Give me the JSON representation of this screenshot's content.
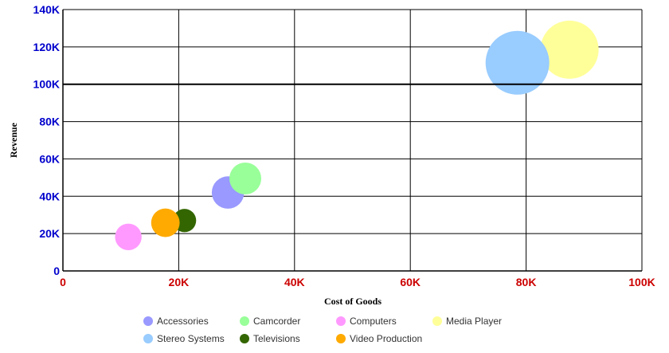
{
  "chart_data": {
    "type": "scatter",
    "subtype": "bubble",
    "title": "",
    "xlabel": "Cost of Goods",
    "ylabel": "Revenue",
    "xlim": [
      0,
      100000
    ],
    "ylim": [
      0,
      140000
    ],
    "x_ticks": [
      {
        "value": 0,
        "label": "0"
      },
      {
        "value": 20000,
        "label": "20K"
      },
      {
        "value": 40000,
        "label": "40K"
      },
      {
        "value": 60000,
        "label": "60K"
      },
      {
        "value": 80000,
        "label": "80K"
      },
      {
        "value": 100000,
        "label": "100K"
      }
    ],
    "y_ticks": [
      {
        "value": 0,
        "label": "0"
      },
      {
        "value": 20000,
        "label": "20K"
      },
      {
        "value": 40000,
        "label": "40K"
      },
      {
        "value": 60000,
        "label": "60K"
      },
      {
        "value": 80000,
        "label": "80K"
      },
      {
        "value": 100000,
        "label": "100K"
      },
      {
        "value": 120000,
        "label": "120K"
      },
      {
        "value": 140000,
        "label": "140K"
      }
    ],
    "grid": true,
    "legend_position": "bottom",
    "series": [
      {
        "name": "Accessories",
        "color": "#9999ff",
        "x": 28500,
        "y": 42000,
        "size": 3.1
      },
      {
        "name": "Camcorder",
        "color": "#99ff99",
        "x": 31500,
        "y": 49500,
        "size": 3.0
      },
      {
        "name": "Computers",
        "color": "#ff99ff",
        "x": 11300,
        "y": 18200,
        "size": 2.1
      },
      {
        "name": "Media Player",
        "color": "#ffff99",
        "x": 87500,
        "y": 118500,
        "size": 10.0
      },
      {
        "name": "Stereo Systems",
        "color": "#99ccff",
        "x": 78500,
        "y": 111500,
        "size": 12.0
      },
      {
        "name": "Televisions",
        "color": "#336600",
        "x": 21000,
        "y": 27000,
        "size": 1.6
      },
      {
        "name": "Video Production",
        "color": "#ffaa00",
        "x": 17700,
        "y": 25800,
        "size": 2.4
      }
    ]
  }
}
